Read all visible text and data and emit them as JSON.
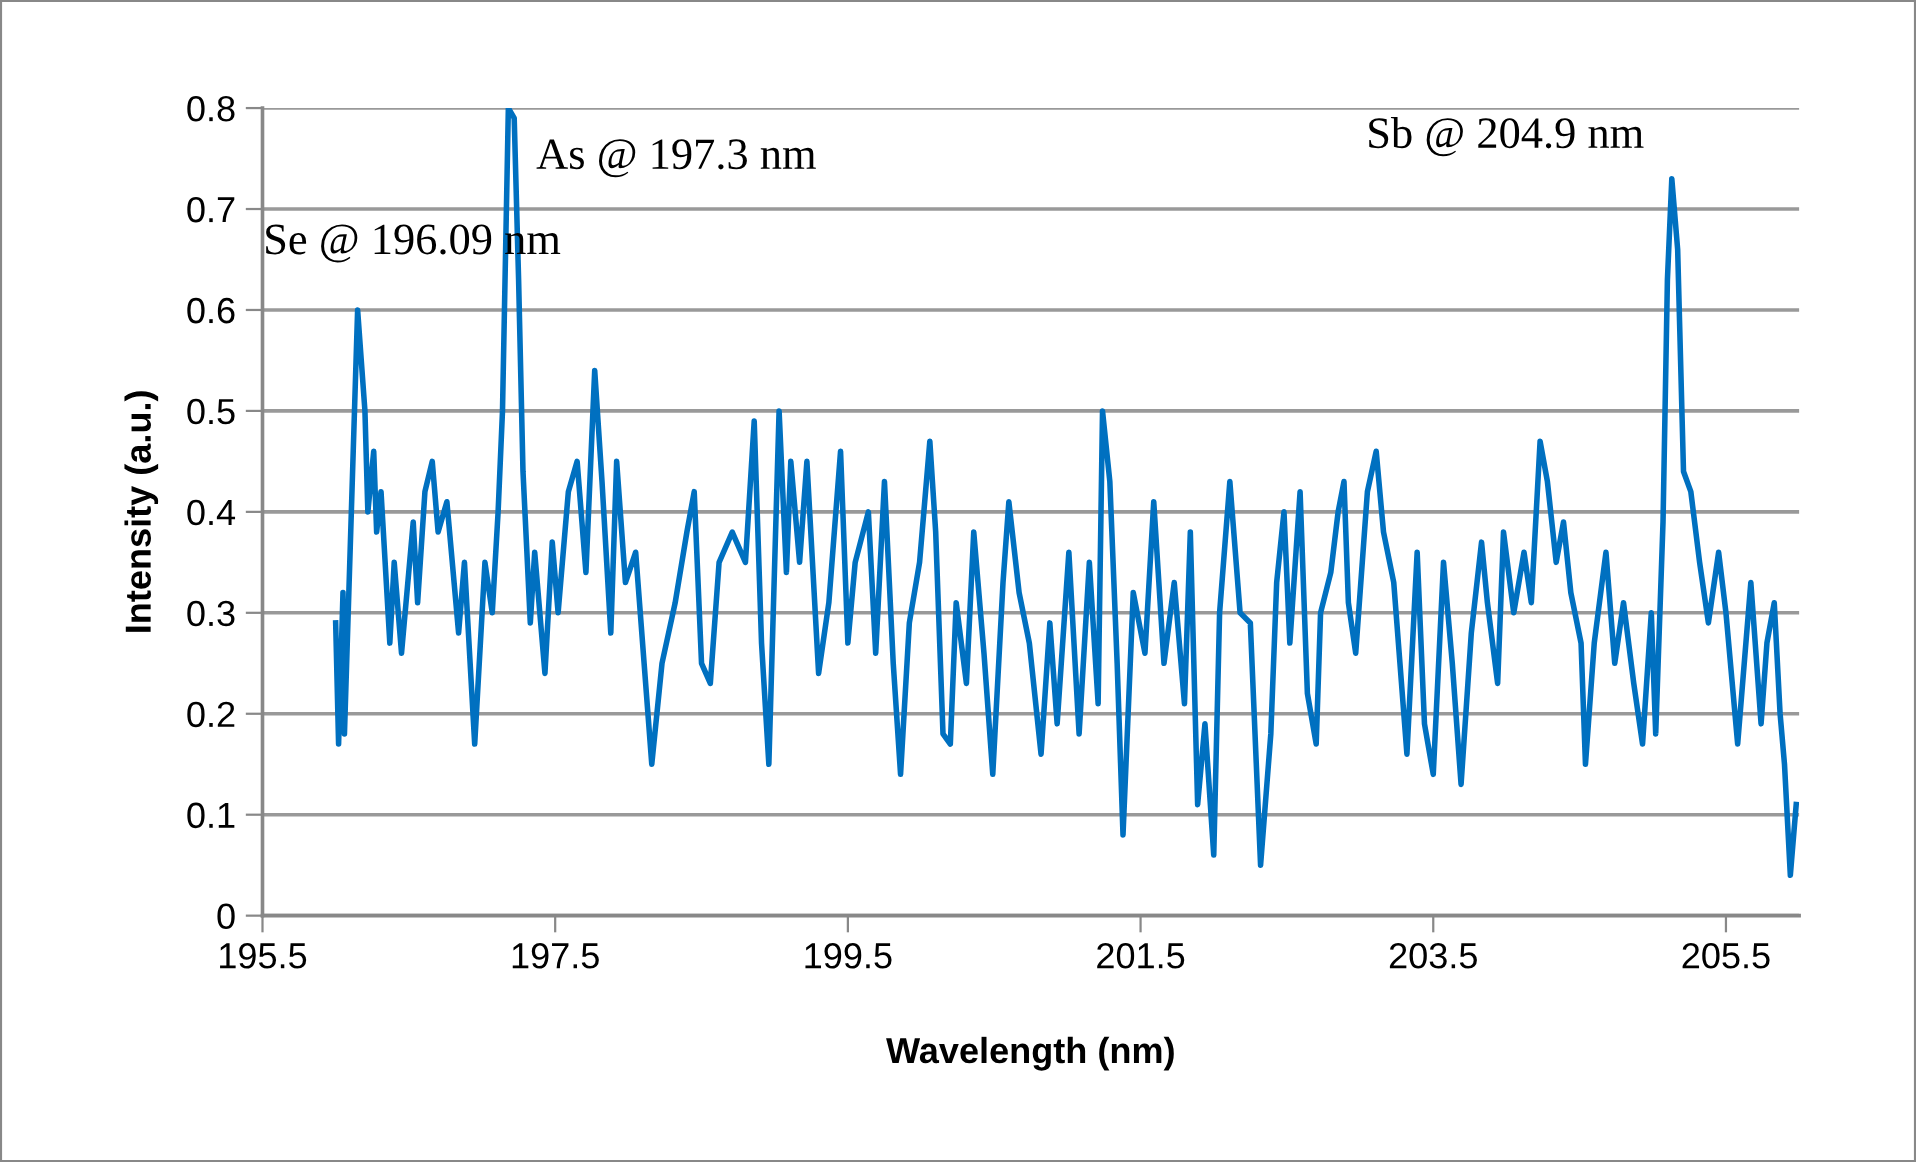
{
  "chart_data": {
    "type": "line",
    "xlabel": "Wavelength (nm)",
    "ylabel": "Intensity (a.u.)",
    "xlim": [
      195.5,
      206.0
    ],
    "xticks": [
      195.5,
      197.5,
      199.5,
      201.5,
      203.5,
      205.5
    ],
    "ylim": [
      0,
      0.8
    ],
    "yticks": [
      {
        "value": 0,
        "label": "0"
      },
      0.1,
      0.2,
      0.3,
      0.4,
      0.5,
      0.6,
      0.7,
      0.8
    ],
    "grid": "y",
    "marker": "none",
    "line_style": "solid",
    "annotations": [
      {
        "text": "Se @ 196.09 nm",
        "x": 196.15,
        "y": 0.6
      },
      {
        "text": "As @ 197.3 nm",
        "x": 197.18,
        "y": 0.8
      },
      {
        "text": "Sb @ 204.9 nm",
        "x": 205.13,
        "y": 0.73
      }
    ],
    "series": [
      {
        "color": "#0070c0",
        "x": [
          196.0,
          196.02,
          196.05,
          196.06,
          196.09,
          196.15,
          196.2,
          196.22,
          196.26,
          196.28,
          196.31,
          196.37,
          196.4,
          196.45,
          196.53,
          196.56,
          196.61,
          196.66,
          196.7,
          196.76,
          196.84,
          196.88,
          196.95,
          197.02,
          197.07,
          197.11,
          197.14,
          197.18,
          197.22,
          197.25,
          197.28,
          197.33,
          197.36,
          197.43,
          197.48,
          197.52,
          197.59,
          197.65,
          197.71,
          197.77,
          197.82,
          197.88,
          197.92,
          197.98,
          198.05,
          198.16,
          198.23,
          198.32,
          198.4,
          198.45,
          198.5,
          198.56,
          198.62,
          198.71,
          198.8,
          198.86,
          198.91,
          198.96,
          199.03,
          199.08,
          199.11,
          199.17,
          199.22,
          199.3,
          199.37,
          199.45,
          199.5,
          199.55,
          199.64,
          199.69,
          199.75,
          199.81,
          199.86,
          199.92,
          199.99,
          200.06,
          200.1,
          200.15,
          200.2,
          200.24,
          200.31,
          200.36,
          200.43,
          200.49,
          200.56,
          200.6,
          200.67,
          200.74,
          200.82,
          200.88,
          200.93,
          201.01,
          201.08,
          201.15,
          201.21,
          201.24,
          201.29,
          201.34,
          201.38,
          201.45,
          201.53,
          201.59,
          201.66,
          201.73,
          201.8,
          201.84,
          201.89,
          201.94,
          202.0,
          202.04,
          202.11,
          202.18,
          202.25,
          202.32,
          202.39,
          202.43,
          202.48,
          202.52,
          202.59,
          202.64,
          202.7,
          202.73,
          202.8,
          202.85,
          202.89,
          202.92,
          202.97,
          203.05,
          203.11,
          203.16,
          203.23,
          203.32,
          203.39,
          203.44,
          203.5,
          203.57,
          203.63,
          203.69,
          203.76,
          203.83,
          203.87,
          203.94,
          203.98,
          204.05,
          204.12,
          204.17,
          204.23,
          204.28,
          204.34,
          204.39,
          204.44,
          204.51,
          204.54,
          204.6,
          204.68,
          204.74,
          204.8,
          204.87,
          204.93,
          204.99,
          205.02,
          205.07,
          205.1,
          205.13,
          205.17,
          205.21,
          205.26,
          205.32,
          205.38,
          205.45,
          205.5,
          205.58,
          205.67,
          205.74,
          205.78,
          205.83,
          205.87,
          205.9,
          205.94,
          205.98
        ],
        "values": [
          0.29,
          0.17,
          0.32,
          0.18,
          0.32,
          0.6,
          0.5,
          0.4,
          0.46,
          0.38,
          0.42,
          0.27,
          0.35,
          0.26,
          0.39,
          0.31,
          0.42,
          0.45,
          0.38,
          0.41,
          0.28,
          0.35,
          0.17,
          0.35,
          0.3,
          0.4,
          0.5,
          0.8,
          0.79,
          0.63,
          0.44,
          0.29,
          0.36,
          0.24,
          0.37,
          0.3,
          0.42,
          0.45,
          0.34,
          0.54,
          0.43,
          0.28,
          0.45,
          0.33,
          0.36,
          0.15,
          0.25,
          0.31,
          0.38,
          0.42,
          0.25,
          0.23,
          0.35,
          0.38,
          0.35,
          0.49,
          0.27,
          0.15,
          0.5,
          0.34,
          0.45,
          0.35,
          0.45,
          0.24,
          0.31,
          0.46,
          0.27,
          0.35,
          0.4,
          0.26,
          0.43,
          0.25,
          0.14,
          0.29,
          0.35,
          0.47,
          0.38,
          0.18,
          0.17,
          0.31,
          0.23,
          0.38,
          0.26,
          0.14,
          0.33,
          0.41,
          0.32,
          0.27,
          0.16,
          0.29,
          0.19,
          0.36,
          0.18,
          0.35,
          0.21,
          0.5,
          0.43,
          0.25,
          0.08,
          0.32,
          0.26,
          0.41,
          0.25,
          0.33,
          0.21,
          0.38,
          0.11,
          0.19,
          0.06,
          0.3,
          0.43,
          0.3,
          0.29,
          0.05,
          0.18,
          0.33,
          0.4,
          0.27,
          0.42,
          0.22,
          0.17,
          0.3,
          0.34,
          0.4,
          0.43,
          0.31,
          0.26,
          0.42,
          0.46,
          0.38,
          0.33,
          0.16,
          0.36,
          0.19,
          0.14,
          0.35,
          0.25,
          0.13,
          0.28,
          0.37,
          0.31,
          0.23,
          0.38,
          0.3,
          0.36,
          0.31,
          0.47,
          0.43,
          0.35,
          0.39,
          0.32,
          0.27,
          0.15,
          0.27,
          0.36,
          0.25,
          0.31,
          0.23,
          0.17,
          0.3,
          0.18,
          0.39,
          0.63,
          0.73,
          0.66,
          0.44,
          0.42,
          0.35,
          0.29,
          0.36,
          0.3,
          0.17,
          0.33,
          0.19,
          0.27,
          0.31,
          0.2,
          0.15,
          0.04,
          0.11
        ]
      }
    ]
  }
}
